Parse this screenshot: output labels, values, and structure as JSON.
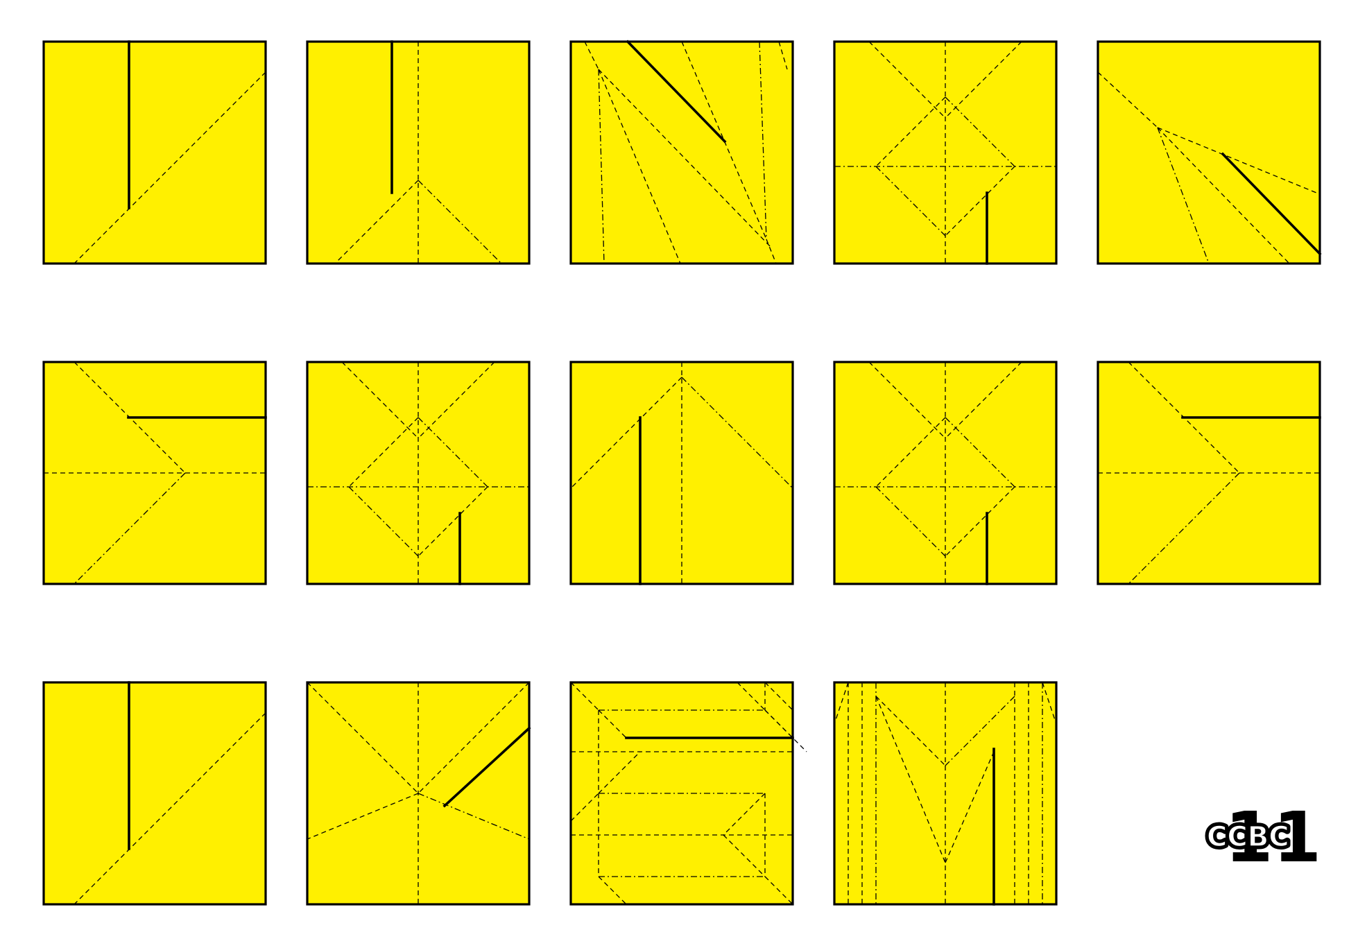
{
  "colors": {
    "paper": "#fff000",
    "line": "#000000",
    "background": "#ffffff"
  },
  "grid": {
    "rows": 3,
    "columns": 5,
    "squares": 14
  },
  "logo": {
    "text": "CCBC",
    "number": "11"
  }
}
